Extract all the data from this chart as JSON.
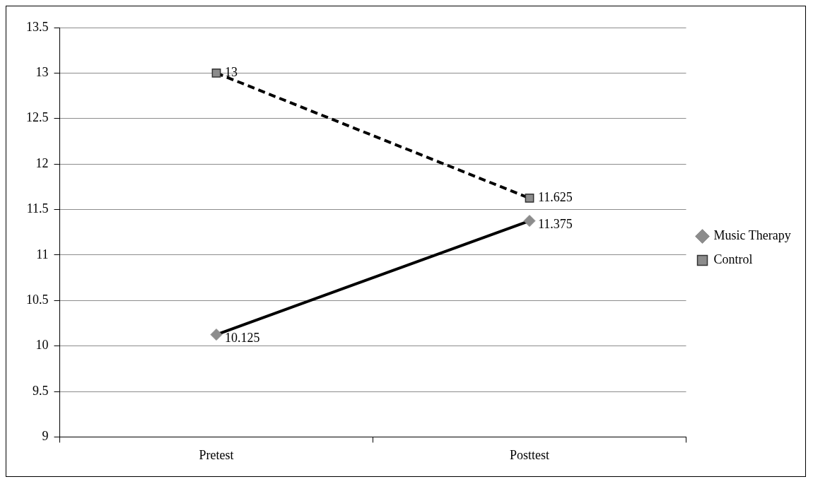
{
  "chart_data": {
    "type": "line",
    "categories": [
      "Pretest",
      "Posttest"
    ],
    "series": [
      {
        "name": "Music Therapy",
        "color": "#000000",
        "values": [
          10.125,
          11.375
        ],
        "marker": "diamond",
        "line_style": "solid"
      },
      {
        "name": "Control",
        "color": "#000000",
        "values": [
          13,
          11.625
        ],
        "marker": "square",
        "line_style": "dashed"
      }
    ],
    "ylim": [
      9,
      13.5
    ],
    "yticks": [
      9,
      9.5,
      10,
      10.5,
      11,
      11.5,
      12,
      12.5,
      13,
      13.5
    ],
    "grid": "y",
    "legend": "right",
    "data_labels": true
  }
}
